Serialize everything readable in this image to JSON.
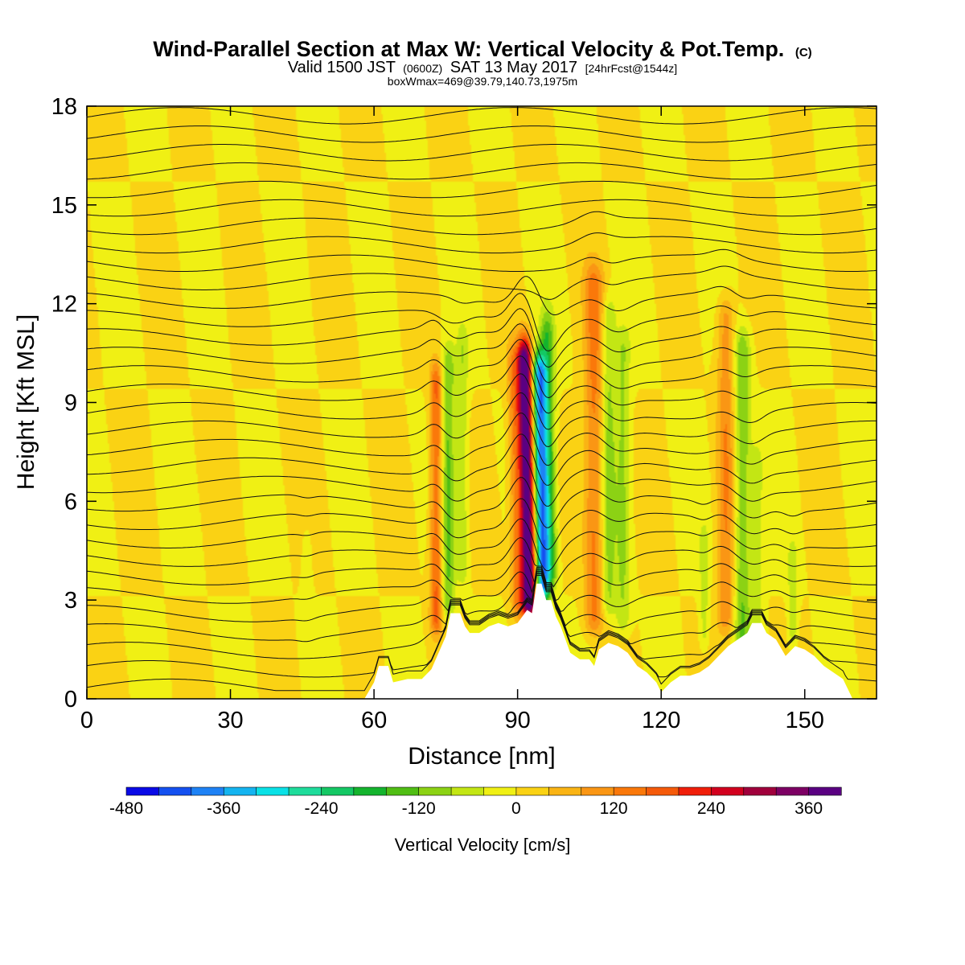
{
  "chart_data": {
    "type": "heatmap",
    "title": "Wind-Parallel Section at Max W: Vertical Velocity & Pot.Temp.",
    "title_mark": "(C)",
    "subtitle_parts": [
      "Valid 1500 JST",
      "(0600Z)",
      "SAT 13 May 2017",
      "[24hrFcst@1544z]"
    ],
    "subtitle2": "boxWmax=469@39.79,140.73,1975m",
    "xlabel": "Distance [nm]",
    "ylabel": "Height [Kft MSL]",
    "xlim": [
      0,
      165
    ],
    "ylim": [
      0,
      18
    ],
    "x_ticks": [
      0,
      30,
      60,
      90,
      120,
      150
    ],
    "y_ticks": [
      0,
      3,
      6,
      9,
      12,
      15,
      18
    ],
    "colorbar": {
      "label": "Vertical Velocity [cm/s]",
      "min": -480,
      "max": 420,
      "step": 40,
      "tick_values": [
        -480,
        -360,
        -240,
        -120,
        0,
        120,
        240,
        360
      ],
      "colors": [
        "#0a0ae6",
        "#1450f0",
        "#1e82f5",
        "#14b4f0",
        "#0ae1e6",
        "#1edc9b",
        "#14c864",
        "#14b42d",
        "#50be14",
        "#8cd214",
        "#c3e614",
        "#f0f014",
        "#fad214",
        "#fab414",
        "#fa9614",
        "#fa780a",
        "#f55a0a",
        "#f01e0a",
        "#d2001e",
        "#a0003c",
        "#7d0064",
        "#5a0082"
      ]
    },
    "w_features": [
      {
        "x": 92,
        "w": 1.6,
        "z0": 3.0,
        "z1": 10.2,
        "amp": 440
      },
      {
        "x": 95,
        "w": 1.5,
        "z0": 3.5,
        "z1": 9.8,
        "amp": -380
      },
      {
        "x": 96.8,
        "w": 1.4,
        "z0": 4.0,
        "z1": 11.0,
        "amp": -140
      },
      {
        "x": 89.5,
        "w": 1.3,
        "z0": 3.0,
        "z1": 10.0,
        "amp": 110
      },
      {
        "x": 73,
        "w": 1.3,
        "z0": 2.5,
        "z1": 9.5,
        "amp": 170
      },
      {
        "x": 75.5,
        "w": 1.4,
        "z0": 3.0,
        "z1": 10.0,
        "amp": -120
      },
      {
        "x": 78.5,
        "w": 1.2,
        "z0": 4.0,
        "z1": 10.5,
        "amp": -70
      },
      {
        "x": 106,
        "w": 2.0,
        "z0": 2.5,
        "z1": 12.5,
        "amp": 130
      },
      {
        "x": 109,
        "w": 1.5,
        "z0": 3.0,
        "z1": 11.5,
        "amp": -90
      },
      {
        "x": 112,
        "w": 1.5,
        "z0": 2.5,
        "z1": 10.5,
        "amp": -80
      },
      {
        "x": 133.5,
        "w": 1.8,
        "z0": 2.5,
        "z1": 11.5,
        "amp": 110
      },
      {
        "x": 137,
        "w": 1.7,
        "z0": 2.0,
        "z1": 10.5,
        "amp": -120
      },
      {
        "x": 140,
        "w": 1.2,
        "z0": 2.0,
        "z1": 7.0,
        "amp": -60
      },
      {
        "x": 147.5,
        "w": 1.0,
        "z0": 2.0,
        "z1": 4.0,
        "amp": -70
      },
      {
        "x": 129,
        "w": 1.0,
        "z0": 2.0,
        "z1": 4.5,
        "amp": -60
      },
      {
        "x": 46,
        "w": 1.0,
        "z0": 3.5,
        "z1": 4.5,
        "amp": -40
      }
    ],
    "terrain": [
      [
        0,
        0
      ],
      [
        58,
        0
      ],
      [
        60,
        0.5
      ],
      [
        61,
        1.0
      ],
      [
        63,
        1.0
      ],
      [
        64,
        0.5
      ],
      [
        67,
        0.6
      ],
      [
        70,
        0.6
      ],
      [
        72,
        0.9
      ],
      [
        75,
        1.9
      ],
      [
        76,
        2.6
      ],
      [
        78,
        2.6
      ],
      [
        79,
        2.2
      ],
      [
        80,
        2.0
      ],
      [
        82,
        2.0
      ],
      [
        84,
        2.2
      ],
      [
        86,
        2.3
      ],
      [
        88,
        2.2
      ],
      [
        90,
        2.3
      ],
      [
        92,
        2.7
      ],
      [
        93,
        2.6
      ],
      [
        94,
        3.5
      ],
      [
        95,
        3.5
      ],
      [
        96,
        3.0
      ],
      [
        97,
        3.0
      ],
      [
        98,
        2.5
      ],
      [
        99,
        2.2
      ],
      [
        100,
        1.8
      ],
      [
        101,
        1.4
      ],
      [
        103,
        1.2
      ],
      [
        105,
        1.2
      ],
      [
        106,
        1.0
      ],
      [
        107,
        1.5
      ],
      [
        109,
        1.7
      ],
      [
        111,
        1.6
      ],
      [
        113,
        1.4
      ],
      [
        115,
        1.0
      ],
      [
        117,
        0.8
      ],
      [
        119,
        0.5
      ],
      [
        120,
        0.2
      ],
      [
        122,
        0.5
      ],
      [
        124,
        0.7
      ],
      [
        126,
        0.7
      ],
      [
        128,
        0.8
      ],
      [
        130,
        1.0
      ],
      [
        132,
        1.3
      ],
      [
        134,
        1.6
      ],
      [
        136,
        1.8
      ],
      [
        138,
        2.0
      ],
      [
        139,
        2.3
      ],
      [
        141,
        2.3
      ],
      [
        142,
        2.0
      ],
      [
        144,
        1.8
      ],
      [
        146,
        1.3
      ],
      [
        148,
        1.6
      ],
      [
        150,
        1.5
      ],
      [
        152,
        1.3
      ],
      [
        154,
        1.0
      ],
      [
        156,
        0.8
      ],
      [
        158,
        0.6
      ],
      [
        160,
        0
      ],
      [
        165,
        0
      ]
    ],
    "theta_contour_count": 32
  }
}
